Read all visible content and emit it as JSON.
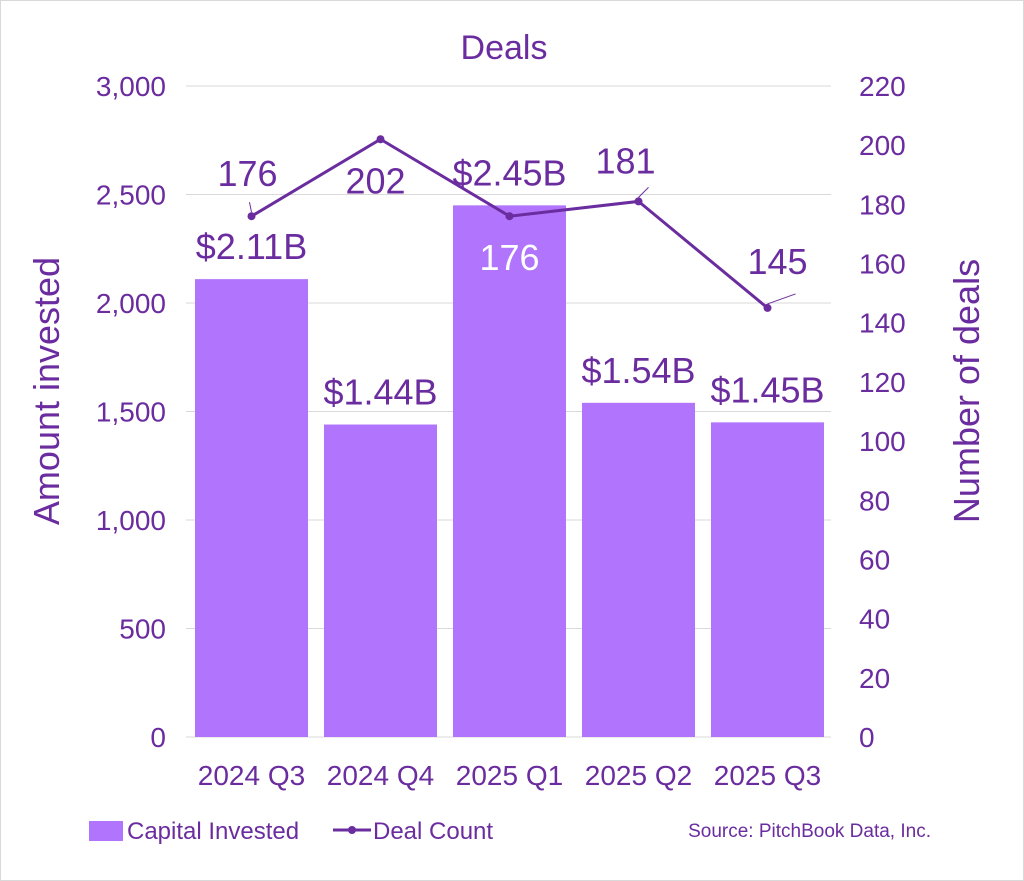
{
  "chart_data": {
    "type": "bar+line",
    "title": "Deals",
    "categories": [
      "2024 Q3",
      "2024 Q4",
      "2025 Q1",
      "2025 Q2",
      "2025 Q3"
    ],
    "series": [
      {
        "name": "Capital Invested",
        "kind": "bar",
        "axis": "left",
        "values": [
          2110,
          1440,
          2450,
          1540,
          1450
        ],
        "labels": [
          "$2.11B",
          "$1.44B",
          "$2.45B",
          "$1.54B",
          "$1.45B"
        ],
        "color": "#b075fc"
      },
      {
        "name": "Deal Count",
        "kind": "line",
        "axis": "right",
        "values": [
          176,
          202,
          176,
          181,
          145
        ],
        "labels": [
          "176",
          "202",
          "176",
          "181",
          "145"
        ],
        "color": "#6a2c9e"
      }
    ],
    "y_left": {
      "label": "Amount invested",
      "ylim": [
        0,
        3000
      ],
      "ticks": [
        0,
        500,
        1000,
        1500,
        2000,
        2500,
        3000
      ],
      "tick_labels": [
        "0",
        "500",
        "1,000",
        "1,500",
        "2,000",
        "2,500",
        "3,000"
      ]
    },
    "y_right": {
      "label": "Number of deals",
      "ylim": [
        0,
        220
      ],
      "ticks": [
        0,
        20,
        40,
        60,
        80,
        100,
        120,
        140,
        160,
        180,
        200,
        220
      ],
      "tick_labels": [
        "0",
        "20",
        "40",
        "60",
        "80",
        "100",
        "120",
        "140",
        "160",
        "180",
        "200",
        "220"
      ]
    },
    "grid": true,
    "legend_position": "bottom-left",
    "source": "Source: PitchBook Data, Inc."
  },
  "colors": {
    "text": "#6a2c9e",
    "bar": "#b075fc",
    "line": "#6a2c9e",
    "grid": "#d9d9d9"
  }
}
